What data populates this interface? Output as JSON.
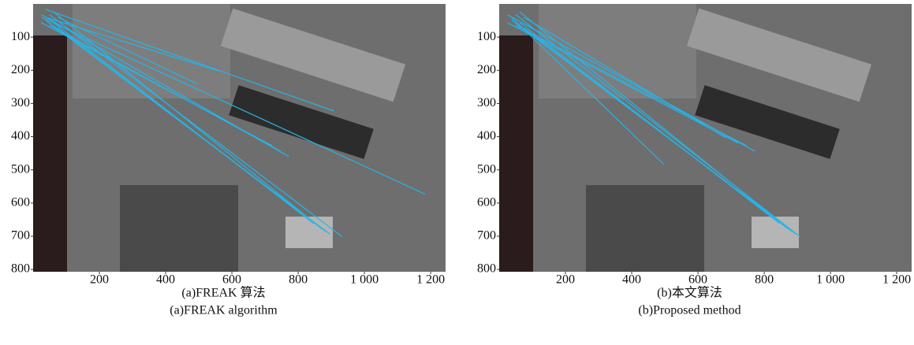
{
  "chart_data": [
    {
      "type": "image",
      "caption": "(a)FREAK 算法",
      "caption_en": "(a)FREAK algorithm",
      "xlim": [
        0,
        1245
      ],
      "ylim": [
        0,
        807
      ],
      "xticks": [
        200,
        400,
        600,
        800,
        {
          "value": 1000,
          "label": "1 000"
        },
        {
          "value": 1200,
          "label": "1 200"
        }
      ],
      "yticks": [
        100,
        200,
        300,
        400,
        500,
        600,
        700,
        800
      ]
    },
    {
      "type": "image",
      "caption": "(b)本文算法",
      "caption_en": "(b)Proposed method",
      "xlim": [
        0,
        1245
      ],
      "ylim": [
        0,
        807
      ],
      "xticks": [
        200,
        400,
        600,
        800,
        {
          "value": 1000,
          "label": "1 000"
        },
        {
          "value": 1200,
          "label": "1 200"
        }
      ],
      "yticks": [
        100,
        200,
        300,
        400,
        500,
        600,
        700,
        800
      ]
    }
  ]
}
